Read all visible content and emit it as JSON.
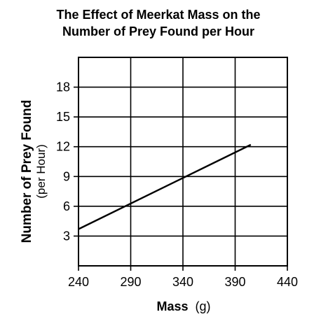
{
  "chart_data": {
    "type": "line",
    "title_lines": [
      "The Effect of Meerkat Mass on the",
      "Number of Prey Found per Hour"
    ],
    "xlabel": "Mass",
    "xlabel_unit": "(g)",
    "ylabel": "Number of Prey Found",
    "ylabel_unit": "(per Hour)",
    "xlim": [
      240,
      440
    ],
    "ylim": [
      0,
      21
    ],
    "x_ticks": [
      240,
      290,
      340,
      390,
      440
    ],
    "y_ticks": [
      3,
      6,
      9,
      12,
      15,
      18
    ],
    "grid": true,
    "legend": "none",
    "series": [
      {
        "x": [
          240,
          405
        ],
        "y": [
          3.7,
          12.2
        ]
      }
    ]
  }
}
